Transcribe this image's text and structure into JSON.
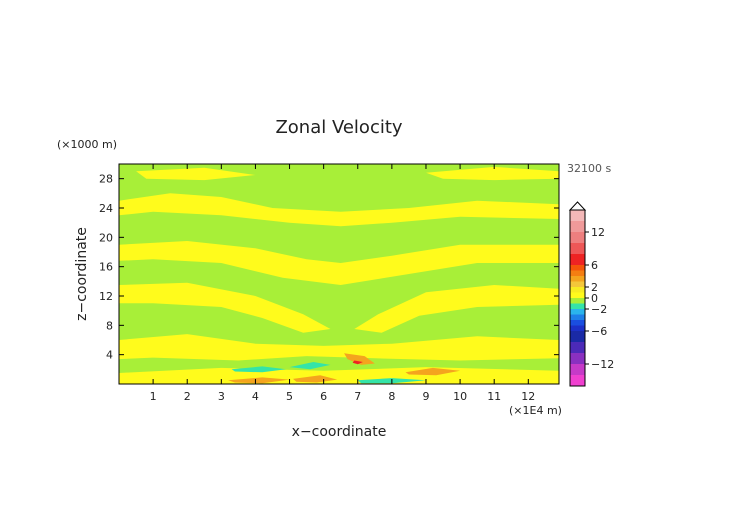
{
  "chart_data": {
    "type": "heatmap",
    "title": "Zonal Velocity",
    "xlabel": "x−coordinate",
    "ylabel": "z−coordinate",
    "x_unit": "(×1E4 m)",
    "y_unit": "(×1000 m)",
    "time_label": "32100 s",
    "xlim": [
      0,
      12.9
    ],
    "ylim": [
      0,
      30
    ],
    "x_ticks": [
      "1",
      "2",
      "3",
      "4",
      "5",
      "6",
      "7",
      "8",
      "9",
      "10",
      "11",
      "12"
    ],
    "x_tick_values": [
      1,
      2,
      3,
      4,
      5,
      6,
      7,
      8,
      9,
      10,
      11,
      12
    ],
    "y_ticks": [
      "4",
      "8",
      "12",
      "16",
      "20",
      "24",
      "28"
    ],
    "y_tick_values": [
      4,
      8,
      12,
      16,
      20,
      24,
      28
    ],
    "colorbar": {
      "labels": [
        "12",
        "6",
        "2",
        "0",
        "−2",
        "−6",
        "−12"
      ],
      "label_values": [
        12,
        6,
        2,
        0,
        -2,
        -6,
        -12
      ],
      "levels": [
        {
          "min": 14,
          "max": 16,
          "color": "#f4b8b8"
        },
        {
          "min": 12,
          "max": 14,
          "color": "#f09a9a"
        },
        {
          "min": 10,
          "max": 12,
          "color": "#ee7f7f"
        },
        {
          "min": 8,
          "max": 10,
          "color": "#ee5757"
        },
        {
          "min": 6,
          "max": 8,
          "color": "#ee2323"
        },
        {
          "min": 5,
          "max": 6,
          "color": "#f5550a"
        },
        {
          "min": 4,
          "max": 5,
          "color": "#f47e12"
        },
        {
          "min": 3,
          "max": 4,
          "color": "#f4a41e"
        },
        {
          "min": 2,
          "max": 3,
          "color": "#f4c73a"
        },
        {
          "min": 1,
          "max": 2,
          "color": "#f8ec22"
        },
        {
          "min": 0,
          "max": 1,
          "color": "#fffb1c"
        },
        {
          "min": -1,
          "max": 0,
          "color": "#a8ef38"
        },
        {
          "min": -2,
          "max": -1,
          "color": "#34e4a8"
        },
        {
          "min": -3,
          "max": -2,
          "color": "#2ab4ec"
        },
        {
          "min": -4,
          "max": -3,
          "color": "#1e7fe8"
        },
        {
          "min": -5,
          "max": -4,
          "color": "#1a4ee0"
        },
        {
          "min": -6,
          "max": -5,
          "color": "#1c30c8"
        },
        {
          "min": -8,
          "max": -6,
          "color": "#1a2aa6"
        },
        {
          "min": -10,
          "max": -8,
          "color": "#4c2ab8"
        },
        {
          "min": -12,
          "max": -10,
          "color": "#8a30c0"
        },
        {
          "min": -14,
          "max": -12,
          "color": "#c63ac8"
        },
        {
          "min": -16,
          "max": -14,
          "color": "#f040d0"
        }
      ]
    },
    "field": {
      "background": {
        "level": "0 to -1",
        "color": "#a8ef38"
      },
      "regions": [
        {
          "desc": "upper yellow band",
          "color": "#fffb1c",
          "pts": [
            [
              0,
              25
            ],
            [
              1.5,
              26
            ],
            [
              3,
              25.5
            ],
            [
              4.5,
              24
            ],
            [
              6.5,
              23.5
            ],
            [
              8.5,
              24
            ],
            [
              10.5,
              25
            ],
            [
              12.9,
              24.5
            ],
            [
              12.9,
              22.5
            ],
            [
              10,
              22.8
            ],
            [
              8,
              22
            ],
            [
              6.5,
              21.5
            ],
            [
              5,
              22
            ],
            [
              3,
              23
            ],
            [
              1,
              23.5
            ],
            [
              0,
              23
            ]
          ]
        },
        {
          "desc": "top yellow patches",
          "color": "#fffb1c",
          "pts": [
            [
              0.5,
              29
            ],
            [
              2.5,
              29.5
            ],
            [
              4,
              28.5
            ],
            [
              2.5,
              27.8
            ],
            [
              0.8,
              28
            ]
          ]
        },
        {
          "desc": "top yellow patches right",
          "color": "#fffb1c",
          "pts": [
            [
              9,
              28.8
            ],
            [
              11,
              29.6
            ],
            [
              12.9,
              29
            ],
            [
              12.9,
              28
            ],
            [
              11,
              27.8
            ],
            [
              9.5,
              28
            ]
          ]
        },
        {
          "desc": "mid yellow band",
          "color": "#fffb1c",
          "pts": [
            [
              0,
              19
            ],
            [
              2,
              19.5
            ],
            [
              4,
              18.5
            ],
            [
              5.5,
              17
            ],
            [
              6.5,
              16.5
            ],
            [
              8,
              17.5
            ],
            [
              10,
              19
            ],
            [
              12.9,
              19
            ],
            [
              12.9,
              16.5
            ],
            [
              10.5,
              16.5
            ],
            [
              8.5,
              15
            ],
            [
              6.5,
              13.5
            ],
            [
              4.8,
              14.5
            ],
            [
              3,
              16.5
            ],
            [
              1,
              17
            ],
            [
              0,
              16.8
            ]
          ]
        },
        {
          "desc": "yellow v-arms left",
          "color": "#fffb1c",
          "pts": [
            [
              0,
              13.5
            ],
            [
              2,
              13.8
            ],
            [
              4,
              12
            ],
            [
              5.4,
              9.5
            ],
            [
              6.2,
              7.5
            ],
            [
              5.4,
              7
            ],
            [
              4.2,
              9
            ],
            [
              3,
              10.5
            ],
            [
              1,
              11
            ],
            [
              0,
              11
            ]
          ]
        },
        {
          "desc": "yellow v-arms right",
          "color": "#fffb1c",
          "pts": [
            [
              12.9,
              13
            ],
            [
              11,
              13.5
            ],
            [
              9,
              12.5
            ],
            [
              7.6,
              9.5
            ],
            [
              6.9,
              7.5
            ],
            [
              7.7,
              7
            ],
            [
              8.8,
              9.3
            ],
            [
              10.5,
              10.5
            ],
            [
              12.9,
              10.8
            ]
          ]
        },
        {
          "desc": "low yellow band",
          "color": "#fffb1c",
          "pts": [
            [
              0,
              6
            ],
            [
              2,
              6.8
            ],
            [
              4,
              5.5
            ],
            [
              6,
              5.2
            ],
            [
              8,
              5.5
            ],
            [
              10.5,
              6.5
            ],
            [
              12.9,
              6
            ],
            [
              12.9,
              3.5
            ],
            [
              10,
              3.2
            ],
            [
              7.5,
              3.5
            ],
            [
              5.5,
              3.8
            ],
            [
              3.5,
              3.2
            ],
            [
              1,
              3.6
            ],
            [
              0,
              3.4
            ]
          ]
        },
        {
          "desc": "near-ground yellow",
          "color": "#fffb1c",
          "pts": [
            [
              0,
              1.5
            ],
            [
              3,
              2.2
            ],
            [
              6,
              1.8
            ],
            [
              9,
              2.3
            ],
            [
              12.9,
              1.8
            ],
            [
              12.9,
              0
            ],
            [
              0,
              0
            ]
          ]
        },
        {
          "desc": "orange lens left",
          "color": "#f4a41e",
          "pts": [
            [
              3.2,
              0.5
            ],
            [
              4.2,
              0.9
            ],
            [
              5,
              0.6
            ],
            [
              4.2,
              0.1
            ],
            [
              3.4,
              0.2
            ]
          ]
        },
        {
          "desc": "orange lens mid",
          "color": "#f4a41e",
          "pts": [
            [
              5.1,
              0.7
            ],
            [
              5.9,
              1.2
            ],
            [
              6.4,
              0.6
            ],
            [
              5.8,
              0.2
            ],
            [
              5.2,
              0.3
            ]
          ]
        },
        {
          "desc": "orange lens right",
          "color": "#f4a41e",
          "pts": [
            [
              8.4,
              1.6
            ],
            [
              9.2,
              2.2
            ],
            [
              10,
              1.8
            ],
            [
              9.3,
              1.2
            ],
            [
              8.5,
              1.3
            ]
          ]
        },
        {
          "desc": "orange near center",
          "color": "#f4a41e",
          "pts": [
            [
              6.6,
              4.2
            ],
            [
              7.2,
              3.8
            ],
            [
              7.5,
              2.8
            ],
            [
              7.1,
              2.6
            ],
            [
              6.7,
              3.4
            ]
          ]
        },
        {
          "desc": "red core center",
          "color": "#ee2323",
          "pts": [
            [
              6.9,
              3.2
            ],
            [
              7.15,
              3.0
            ],
            [
              7.0,
              2.7
            ],
            [
              6.85,
              2.9
            ]
          ]
        },
        {
          "desc": "cyan lens left",
          "color": "#34e4a8",
          "pts": [
            [
              3.3,
              2.0
            ],
            [
              4.2,
              2.4
            ],
            [
              4.9,
              2.0
            ],
            [
              4.2,
              1.6
            ],
            [
              3.4,
              1.7
            ]
          ]
        },
        {
          "desc": "cyan lens center-left",
          "color": "#34e4a8",
          "pts": [
            [
              5.0,
              2.3
            ],
            [
              5.7,
              3.0
            ],
            [
              6.2,
              2.6
            ],
            [
              5.6,
              2.0
            ]
          ]
        },
        {
          "desc": "cyan near ground right",
          "color": "#34e4a8",
          "pts": [
            [
              7.0,
              0.5
            ],
            [
              8.0,
              0.8
            ],
            [
              9.0,
              0.5
            ],
            [
              8.0,
              0.1
            ],
            [
              7.1,
              0.1
            ]
          ]
        }
      ]
    }
  }
}
